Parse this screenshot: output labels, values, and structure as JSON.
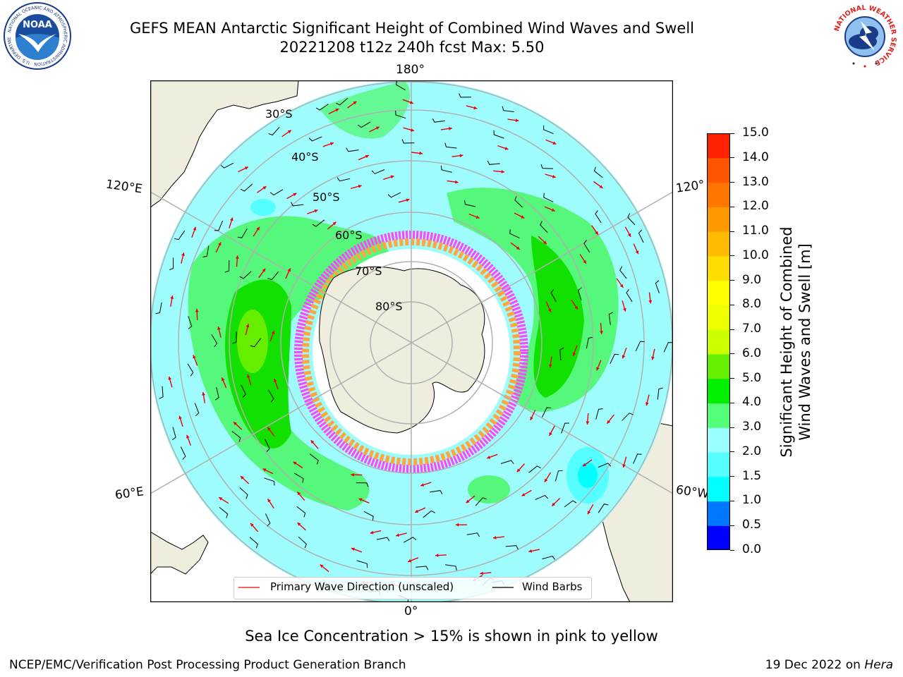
{
  "header": {
    "title_line1": "GEFS MEAN Antarctic Significant Height of Combined Wind Waves and Swell",
    "title_line2": "20221208 t12z 240h fcst   Max: 5.50"
  },
  "logos": {
    "noaa_text": "NOAA",
    "noaa_ring": "NATIONAL OCEANIC AND ATMOSPHERIC ADMINISTRATION · U.S. DEPARTMENT OF COMMERCE",
    "nws_ring": "NATIONAL WEATHER SERVICE"
  },
  "map": {
    "projection": "south-polar-stereographic",
    "longitude_labels": {
      "top": "180°",
      "bottom": "0°",
      "upper_left": "120°E",
      "lower_left": "60°E",
      "upper_right": "120°",
      "lower_right": "60°W"
    },
    "latitude_labels": [
      "30°S",
      "40°S",
      "50°S",
      "60°S",
      "70°S",
      "80°S"
    ],
    "land_color": "#efedde",
    "ocean_low_color": "#9efcfd",
    "ocean_mid_color": "#55f87a",
    "ocean_high_color": "#12e000",
    "ice_colors": [
      "#ff44ff",
      "#ffa640",
      "#ffffff"
    ]
  },
  "colorbar": {
    "ticks": [
      "0.0",
      "0.5",
      "1.0",
      "1.5",
      "2.0",
      "3.0",
      "4.0",
      "5.0",
      "6.0",
      "7.0",
      "8.0",
      "9.0",
      "10.0",
      "11.0",
      "12.0",
      "13.0",
      "14.0",
      "15.0"
    ],
    "colors": [
      "#0000ff",
      "#0077ff",
      "#00ffff",
      "#55ffff",
      "#99ffff",
      "#55ff77",
      "#00ee00",
      "#66ee00",
      "#ccff00",
      "#eeff00",
      "#ffff00",
      "#ffdd00",
      "#ffbb00",
      "#ff9900",
      "#ff7700",
      "#ff5500",
      "#ff2200"
    ],
    "label_line1": "Significant Height of Combined",
    "label_line2": "Wind Waves and Swell [m]"
  },
  "legend": {
    "wave_direction": "Primary Wave Direction (unscaled)",
    "wave_direction_color": "#ff0000",
    "wind_barbs": "Wind Barbs",
    "wind_barbs_color": "#000000"
  },
  "footer": {
    "note": "Sea Ice Concentration > 15% is shown in pink to yellow",
    "credit": "NCEP/EMC/Verification Post Processing Product Generation Branch",
    "run_date": "19 Dec 2022 on ",
    "run_host": "Hera"
  }
}
